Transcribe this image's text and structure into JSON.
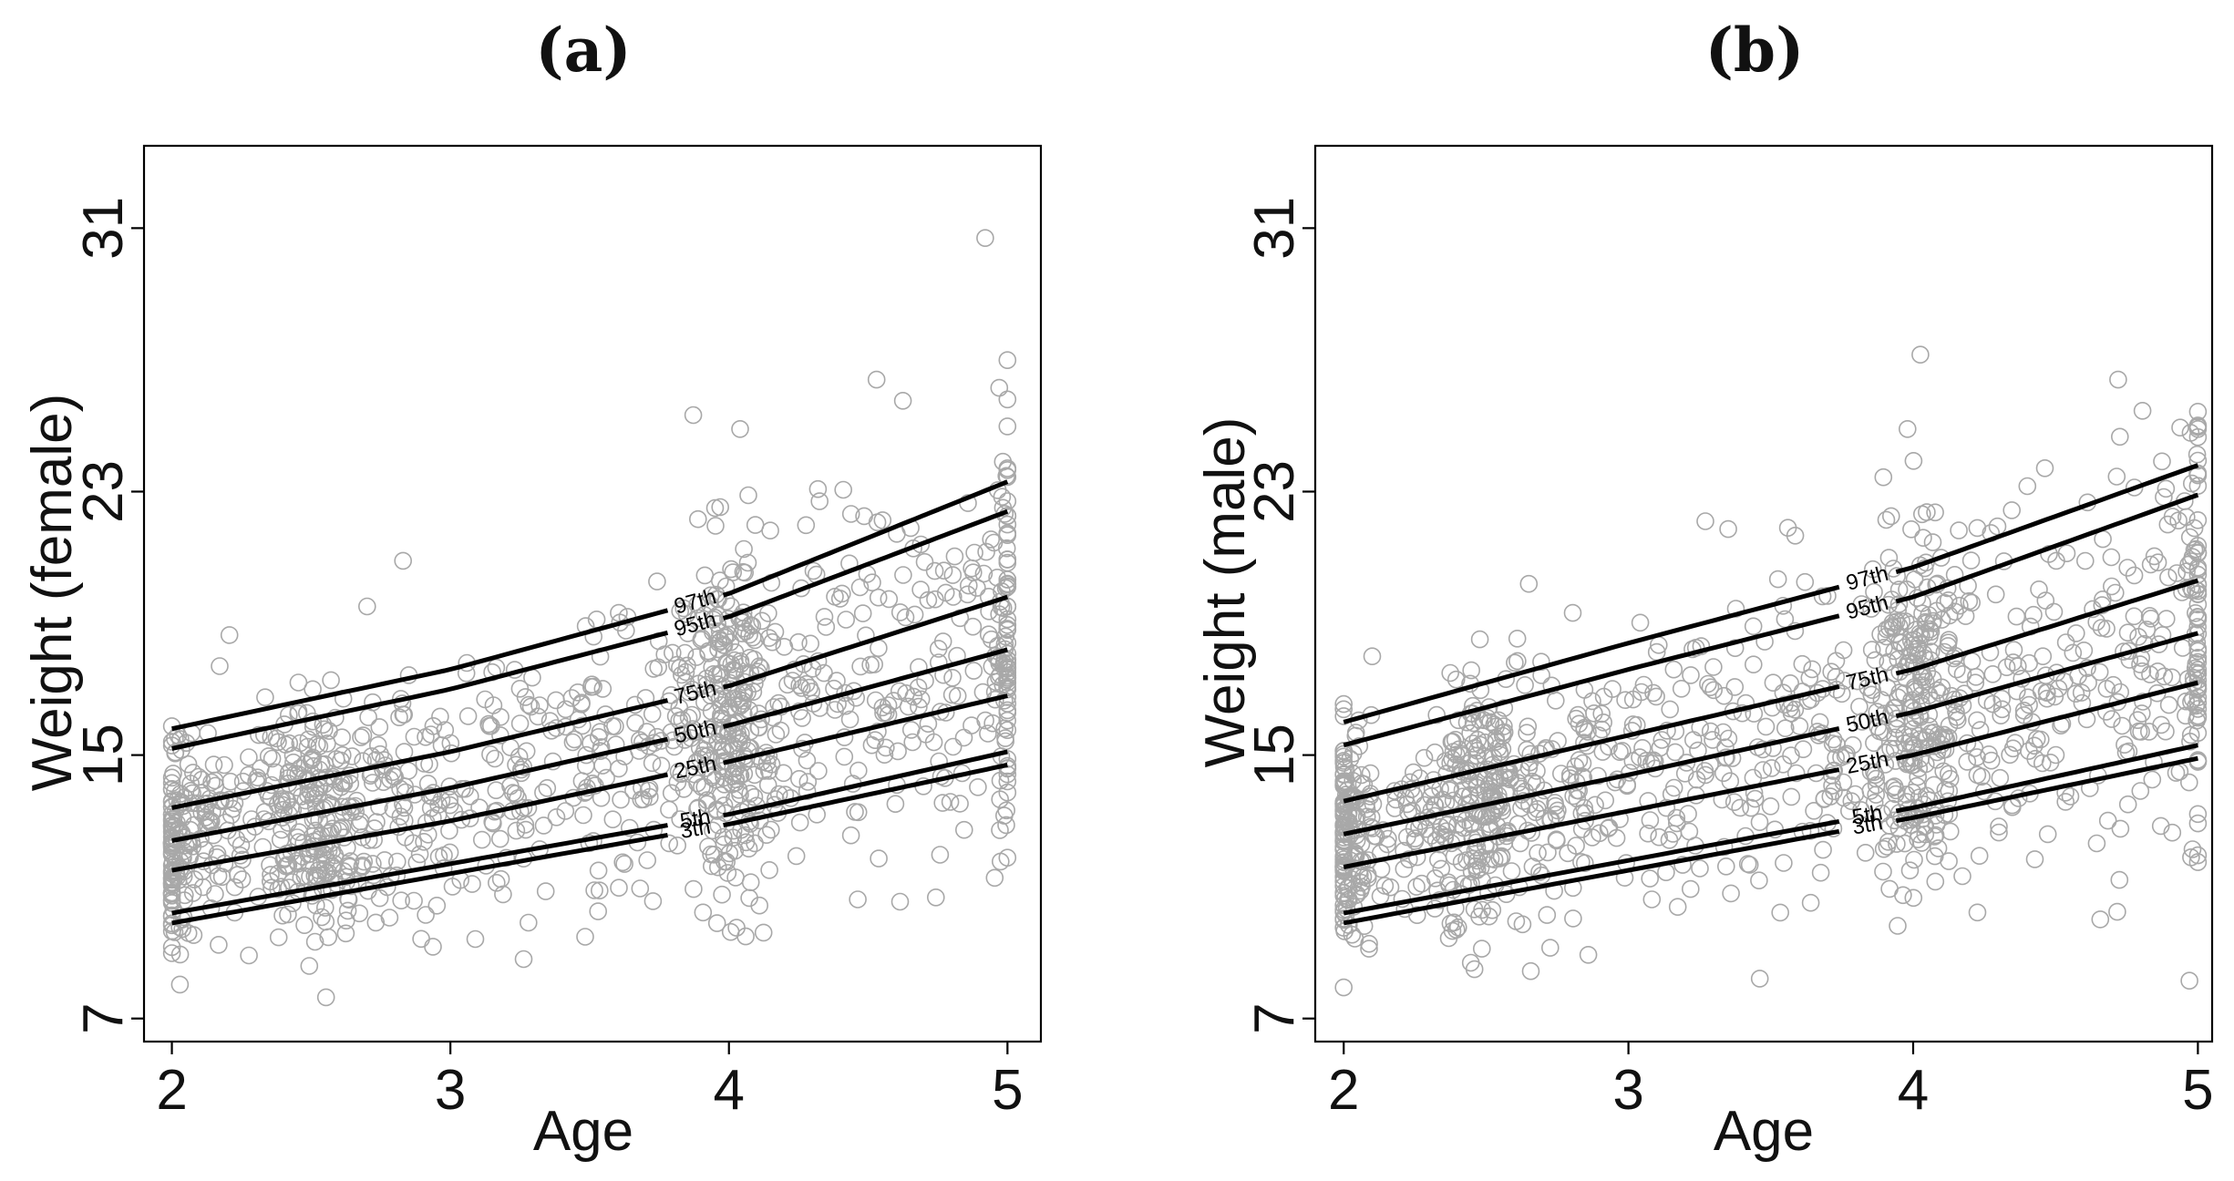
{
  "chart_data": [
    {
      "type": "scatter",
      "panel": "(a)",
      "title": "(a)",
      "xlabel": "Age",
      "ylabel": "Weight (female)",
      "xlim": [
        1.9,
        5.12
      ],
      "ylim": [
        6.3,
        33.5
      ],
      "xticks": [
        2,
        3,
        4,
        5
      ],
      "yticks": [
        7,
        15,
        23,
        31
      ],
      "point_color": "#a8a8a8",
      "line_color": "#000000",
      "scatter_seed": 11,
      "scatter_clusters": [
        {
          "age": 2.0,
          "n": 120,
          "spread": 0.04
        },
        {
          "age": 2.5,
          "n": 170,
          "spread": 0.08
        },
        {
          "age": 4.0,
          "n": 220,
          "spread": 0.08
        },
        {
          "age": 5.0,
          "n": 90,
          "spread": 0.03
        }
      ],
      "scatter_uniform_n": 700,
      "scatter_outliers": [
        [
          4.92,
          30.7
        ],
        [
          4.53,
          26.4
        ],
        [
          5.0,
          25.8
        ],
        [
          4.04,
          24.9
        ],
        [
          2.83,
          20.9
        ],
        [
          3.95,
          22.5
        ],
        [
          2.18,
          11.3
        ],
        [
          2.31,
          10.7
        ]
      ],
      "percentile_curves": [
        {
          "name": "97th",
          "label_age": 3.88,
          "values": [
            [
              2.0,
              15.8
            ],
            [
              3.0,
              17.6
            ],
            [
              4.0,
              19.9
            ],
            [
              5.0,
              23.3
            ]
          ]
        },
        {
          "name": "95th",
          "label_age": 3.88,
          "values": [
            [
              2.0,
              15.2
            ],
            [
              3.0,
              17.0
            ],
            [
              4.0,
              19.2
            ],
            [
              5.0,
              22.4
            ]
          ]
        },
        {
          "name": "75th",
          "label_age": 3.88,
          "values": [
            [
              2.0,
              13.4
            ],
            [
              3.0,
              15.1
            ],
            [
              4.0,
              17.1
            ],
            [
              5.0,
              19.8
            ]
          ]
        },
        {
          "name": "50th",
          "label_age": 3.88,
          "values": [
            [
              2.0,
              12.4
            ],
            [
              3.0,
              14.0
            ],
            [
              4.0,
              15.9
            ],
            [
              5.0,
              18.2
            ]
          ]
        },
        {
          "name": "25th",
          "label_age": 3.88,
          "values": [
            [
              2.0,
              11.5
            ],
            [
              3.0,
              13.0
            ],
            [
              4.0,
              14.8
            ],
            [
              5.0,
              16.8
            ]
          ]
        },
        {
          "name": "5th",
          "label_age": 3.88,
          "values": [
            [
              2.0,
              10.2
            ],
            [
              3.0,
              11.7
            ],
            [
              4.0,
              13.2
            ],
            [
              5.0,
              15.1
            ]
          ]
        },
        {
          "name": "3th",
          "label_age": 3.88,
          "values": [
            [
              2.0,
              9.9
            ],
            [
              3.0,
              11.4
            ],
            [
              4.0,
              12.9
            ],
            [
              5.0,
              14.7
            ]
          ]
        }
      ]
    },
    {
      "type": "scatter",
      "panel": "(b)",
      "title": "(b)",
      "xlabel": "Age",
      "ylabel": "Weight (male)",
      "xlim": [
        1.9,
        5.05
      ],
      "ylim": [
        6.3,
        33.5
      ],
      "xticks": [
        2,
        3,
        4,
        5
      ],
      "yticks": [
        7,
        15,
        23,
        31
      ],
      "point_color": "#a8a8a8",
      "line_color": "#000000",
      "scatter_seed": 29,
      "scatter_clusters": [
        {
          "age": 2.0,
          "n": 130,
          "spread": 0.04
        },
        {
          "age": 2.5,
          "n": 170,
          "spread": 0.08
        },
        {
          "age": 4.0,
          "n": 220,
          "spread": 0.08
        },
        {
          "age": 5.0,
          "n": 90,
          "spread": 0.03
        }
      ],
      "scatter_uniform_n": 700,
      "scatter_outliers": [
        [
          4.72,
          26.4
        ],
        [
          5.0,
          24.9
        ],
        [
          3.98,
          24.9
        ],
        [
          3.27,
          22.1
        ],
        [
          3.56,
          21.9
        ],
        [
          2.65,
          20.2
        ],
        [
          2.1,
          18.0
        ],
        [
          3.36,
          10.8
        ],
        [
          2.51,
          10.1
        ]
      ],
      "percentile_curves": [
        {
          "name": "97th",
          "label_age": 3.84,
          "values": [
            [
              2.0,
              16.0
            ],
            [
              3.0,
              18.4
            ],
            [
              4.0,
              20.7
            ],
            [
              5.0,
              23.8
            ]
          ]
        },
        {
          "name": "95th",
          "label_age": 3.84,
          "values": [
            [
              2.0,
              15.3
            ],
            [
              3.0,
              17.6
            ],
            [
              4.0,
              19.8
            ],
            [
              5.0,
              22.9
            ]
          ]
        },
        {
          "name": "75th",
          "label_age": 3.84,
          "values": [
            [
              2.0,
              13.6
            ],
            [
              3.0,
              15.6
            ],
            [
              4.0,
              17.6
            ],
            [
              5.0,
              20.3
            ]
          ]
        },
        {
          "name": "50th",
          "label_age": 3.84,
          "values": [
            [
              2.0,
              12.6
            ],
            [
              3.0,
              14.4
            ],
            [
              4.0,
              16.3
            ],
            [
              5.0,
              18.7
            ]
          ]
        },
        {
          "name": "25th",
          "label_age": 3.84,
          "values": [
            [
              2.0,
              11.6
            ],
            [
              3.0,
              13.3
            ],
            [
              4.0,
              15.0
            ],
            [
              5.0,
              17.2
            ]
          ]
        },
        {
          "name": "5th",
          "label_age": 3.84,
          "values": [
            [
              2.0,
              10.2
            ],
            [
              3.0,
              11.8
            ],
            [
              4.0,
              13.4
            ],
            [
              5.0,
              15.3
            ]
          ]
        },
        {
          "name": "3th",
          "label_age": 3.84,
          "values": [
            [
              2.0,
              9.9
            ],
            [
              3.0,
              11.5
            ],
            [
              4.0,
              13.1
            ],
            [
              5.0,
              14.9
            ]
          ]
        }
      ]
    }
  ]
}
